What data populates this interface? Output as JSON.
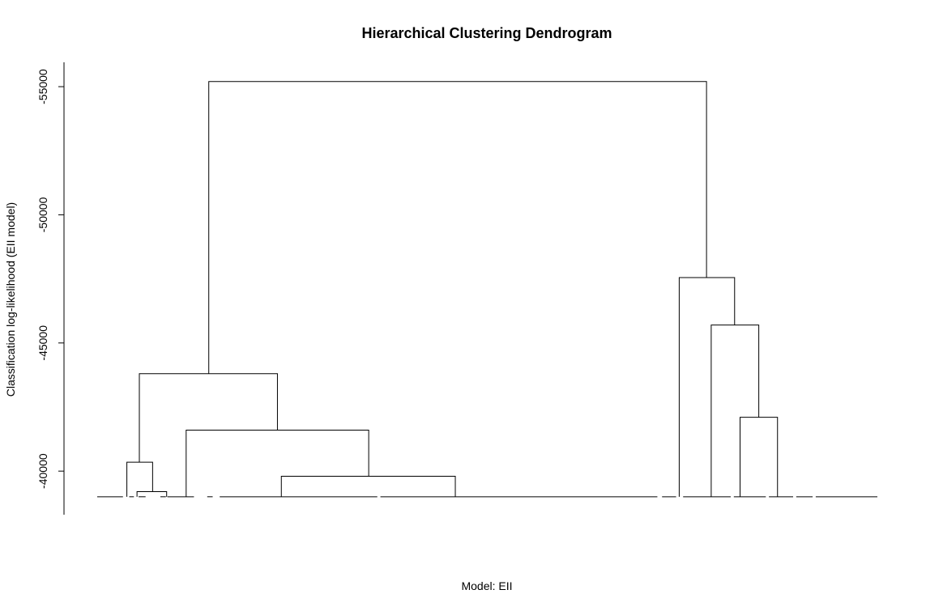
{
  "chart_data": {
    "type": "dendrogram",
    "title": "Hierarchical Clustering Dendrogram",
    "xlabel": "Model: EII",
    "ylabel": "Classification log-likelihood (EII model)",
    "yticks": [
      -55000,
      -50000,
      -45000,
      -40000
    ],
    "ylim": [
      -38300,
      -55950
    ],
    "baseline": -39000,
    "leaf_gaps": [
      [
        0.033,
        0.041
      ],
      [
        0.047,
        0.053
      ],
      [
        0.062,
        0.081
      ],
      [
        0.088,
        0.09
      ],
      [
        0.124,
        0.141
      ],
      [
        0.148,
        0.157
      ],
      [
        0.359,
        0.363
      ],
      [
        0.718,
        0.724
      ],
      [
        0.742,
        0.751
      ],
      [
        0.812,
        0.816
      ],
      [
        0.857,
        0.861
      ],
      [
        0.892,
        0.896
      ],
      [
        0.917,
        0.921
      ]
    ],
    "links": [
      {
        "left": 0.038,
        "right": 0.071,
        "height": -40350
      },
      {
        "left": 0.051,
        "right": 0.089,
        "height": -39200
      },
      {
        "left": 0.236,
        "right": 0.459,
        "height": -39800
      },
      {
        "left": 0.114,
        "right": 0.348,
        "height": -41600
      },
      {
        "left": 0.054,
        "right": 0.231,
        "height": -43800
      },
      {
        "left": 0.824,
        "right": 0.872,
        "height": -42100
      },
      {
        "left": 0.787,
        "right": 0.848,
        "height": -45700
      },
      {
        "left": 0.746,
        "right": 0.817,
        "height": -47550
      },
      {
        "left": 0.143,
        "right": 0.781,
        "height": -55200
      }
    ]
  }
}
